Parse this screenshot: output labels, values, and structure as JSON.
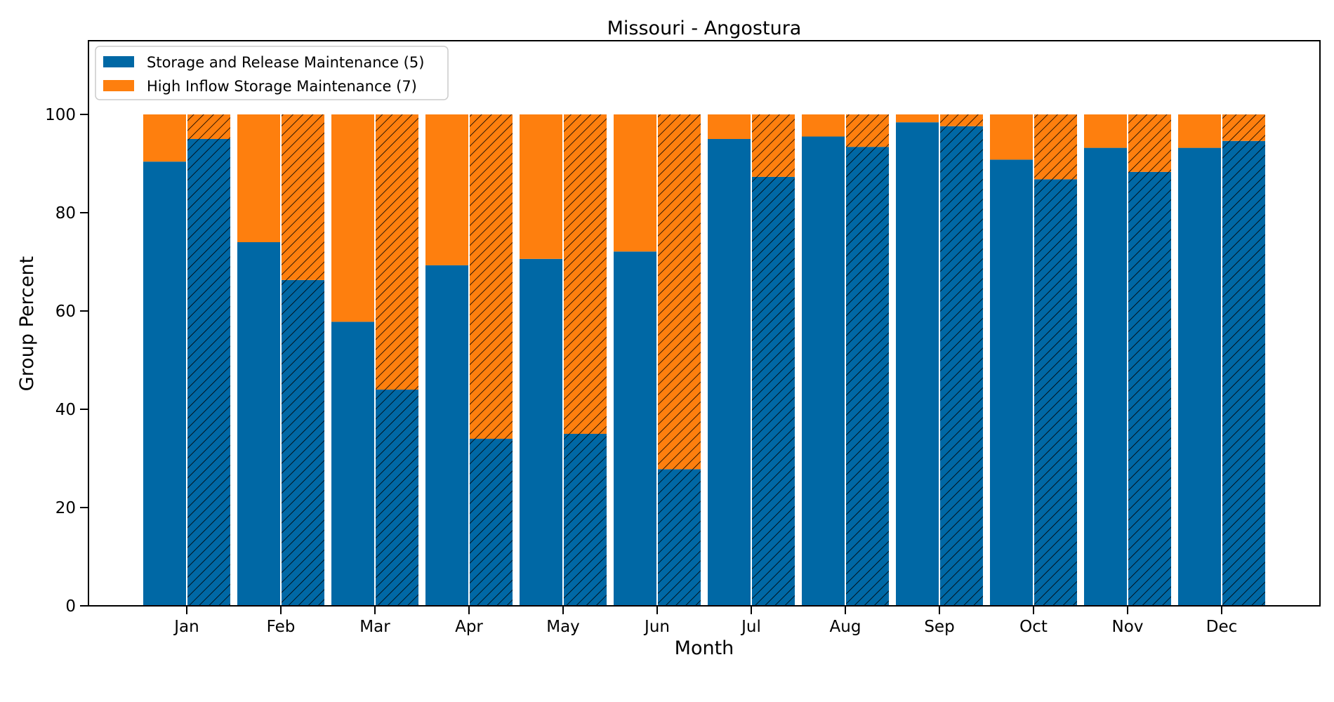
{
  "chart_data": {
    "type": "bar",
    "title": "Missouri - Angostura",
    "xlabel": "Month",
    "ylabel": "Group Percent",
    "ylim": [
      0,
      115
    ],
    "yticks": [
      0,
      20,
      40,
      60,
      80,
      100
    ],
    "categories": [
      "Jan",
      "Feb",
      "Mar",
      "Apr",
      "May",
      "Jun",
      "Jul",
      "Aug",
      "Sep",
      "Oct",
      "Nov",
      "Dec"
    ],
    "stacking": "stacked to 100 percent, two bars per month (plain and hatched)",
    "legend_position": "top-left",
    "grid": false,
    "colors": {
      "storage_release": "#0068a5",
      "high_inflow": "#fe7f0e",
      "hatch": "#000000"
    },
    "series": [
      {
        "name": "Storage and Release Maintenance (5)",
        "color": "#0068a5",
        "values_plain": [
          90.4,
          74.0,
          57.8,
          69.3,
          70.6,
          72.1,
          95.0,
          95.5,
          98.4,
          90.8,
          93.2,
          93.2
        ],
        "values_hatched": [
          95.0,
          66.3,
          44.0,
          34.0,
          35.0,
          27.8,
          87.3,
          93.4,
          97.6,
          86.8,
          88.3,
          94.6
        ]
      },
      {
        "name": "High Inflow Storage Maintenance (7)",
        "color": "#fe7f0e",
        "values_plain": [
          9.6,
          26.0,
          42.2,
          30.7,
          29.4,
          27.9,
          5.0,
          4.5,
          1.6,
          9.2,
          6.8,
          6.8
        ],
        "values_hatched": [
          5.0,
          33.7,
          56.0,
          66.0,
          65.0,
          72.2,
          12.7,
          6.6,
          2.4,
          13.2,
          11.7,
          5.4
        ]
      }
    ]
  }
}
